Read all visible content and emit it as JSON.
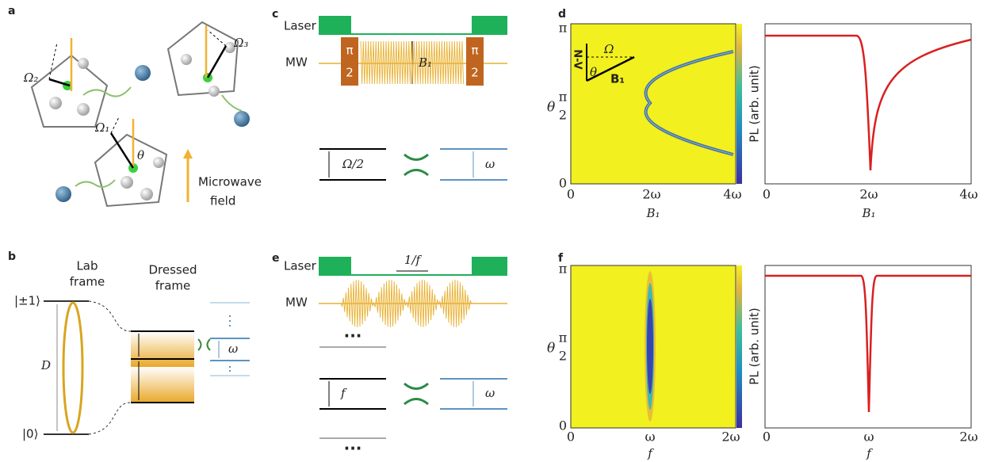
{
  "panels": {
    "a": {
      "label": "a",
      "omega2": "Ω₂",
      "omega3": "Ω₃",
      "omega1": "Ω₁",
      "theta": "θ",
      "field": [
        "Microwave",
        "field"
      ]
    },
    "b": {
      "label": "b",
      "lab": [
        "Lab",
        "frame"
      ],
      "dressed": [
        "Dressed",
        "frame"
      ],
      "upper": "|±1⟩",
      "lower": "|0⟩",
      "d": "D",
      "omega": "ω"
    },
    "c": {
      "label": "c",
      "laser": "Laser",
      "mw": "MW",
      "pulse": [
        "π",
        "2"
      ],
      "b1": "B₁",
      "half_rabi": "Ω/2",
      "omega": "ω"
    },
    "d": {
      "label": "d",
      "yticks": [
        "π",
        "π",
        "2",
        "0"
      ],
      "ylabel": "θ",
      "xticks": [
        "0",
        "2ω",
        "4ω"
      ],
      "xlabel": "B₁",
      "colorbar": "PL (arb. unit)",
      "inset": [
        "N-V",
        "Ω",
        "θ",
        "B₁"
      ],
      "xticks_right": [
        "0",
        "2ω",
        "4ω"
      ],
      "xlabel_right": "B₁"
    },
    "e": {
      "label": "e",
      "laser": "Laser",
      "mw": "MW",
      "period": "1/f",
      "dots": "···",
      "f": "f",
      "omega": "ω"
    },
    "f": {
      "label": "f",
      "yticks": [
        "π",
        "π",
        "2",
        "0"
      ],
      "ylabel": "θ",
      "xticks": [
        "0",
        "ω",
        "2ω"
      ],
      "xlabel": "f",
      "colorbar": "PL (arb. unit)",
      "xticks_right": [
        "0",
        "ω",
        "2ω"
      ],
      "xlabel_right": "f"
    }
  }
}
